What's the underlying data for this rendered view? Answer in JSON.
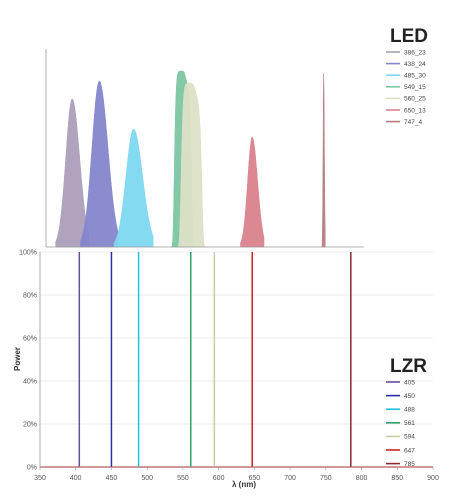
{
  "chart_data": [
    {
      "type": "area",
      "title": "LED",
      "xlim": [
        350,
        900
      ],
      "legend_position": "top-right",
      "series": [
        {
          "name": "386_23",
          "center": 395,
          "width": 21,
          "shape": "gauss",
          "peak": 0.74,
          "color": "#ab9eb9"
        },
        {
          "name": "438_24",
          "center": 433,
          "width": 24,
          "shape": "gauss",
          "peak": 0.83,
          "color": "#8585cc"
        },
        {
          "name": "485_30",
          "center": 481,
          "width": 25,
          "shape": "gauss",
          "peak": 0.59,
          "color": "#7dd8ef"
        },
        {
          "name": "549_15",
          "center": 550,
          "width": 20,
          "shape": "flat",
          "peak": 0.88,
          "color": "#7cc6a0"
        },
        {
          "name": "560_25",
          "center": 562,
          "width": 24,
          "shape": "flat",
          "peak": 0.82,
          "color": "#dbe0c6"
        },
        {
          "name": "650_13",
          "center": 647,
          "width": 15,
          "shape": "gauss",
          "peak": 0.55,
          "color": "#d9828d"
        },
        {
          "name": "747_4",
          "center": 747,
          "width": 2,
          "shape": "gauss",
          "peak": 0.87,
          "color": "#b57e7e"
        }
      ]
    },
    {
      "type": "line",
      "title": "LZR",
      "xlabel": "λ (nm)",
      "ylabel": "Power",
      "xlim": [
        350,
        900
      ],
      "ylim": [
        0,
        100
      ],
      "x_ticks": [
        "350",
        "400",
        "450",
        "500",
        "550",
        "600",
        "650",
        "700",
        "750",
        "800",
        "850",
        "900"
      ],
      "y_ticks": [
        "0%",
        "20%",
        "40%",
        "60%",
        "80%",
        "100%"
      ],
      "legend_position": "bottom-right",
      "series": [
        {
          "name": "405",
          "x": 405,
          "y": 100,
          "color": "#6a4fa0"
        },
        {
          "name": "450",
          "x": 450,
          "y": 100,
          "color": "#2a2fa6"
        },
        {
          "name": "488",
          "x": 488,
          "y": 100,
          "color": "#21c4d8"
        },
        {
          "name": "561",
          "x": 561,
          "y": 100,
          "color": "#2ea566"
        },
        {
          "name": "594",
          "x": 594,
          "y": 100,
          "color": "#c6cba8"
        },
        {
          "name": "647",
          "x": 647,
          "y": 100,
          "color": "#cc2020"
        },
        {
          "name": "785",
          "x": 785,
          "y": 100,
          "color": "#8a2a2a"
        }
      ]
    }
  ]
}
